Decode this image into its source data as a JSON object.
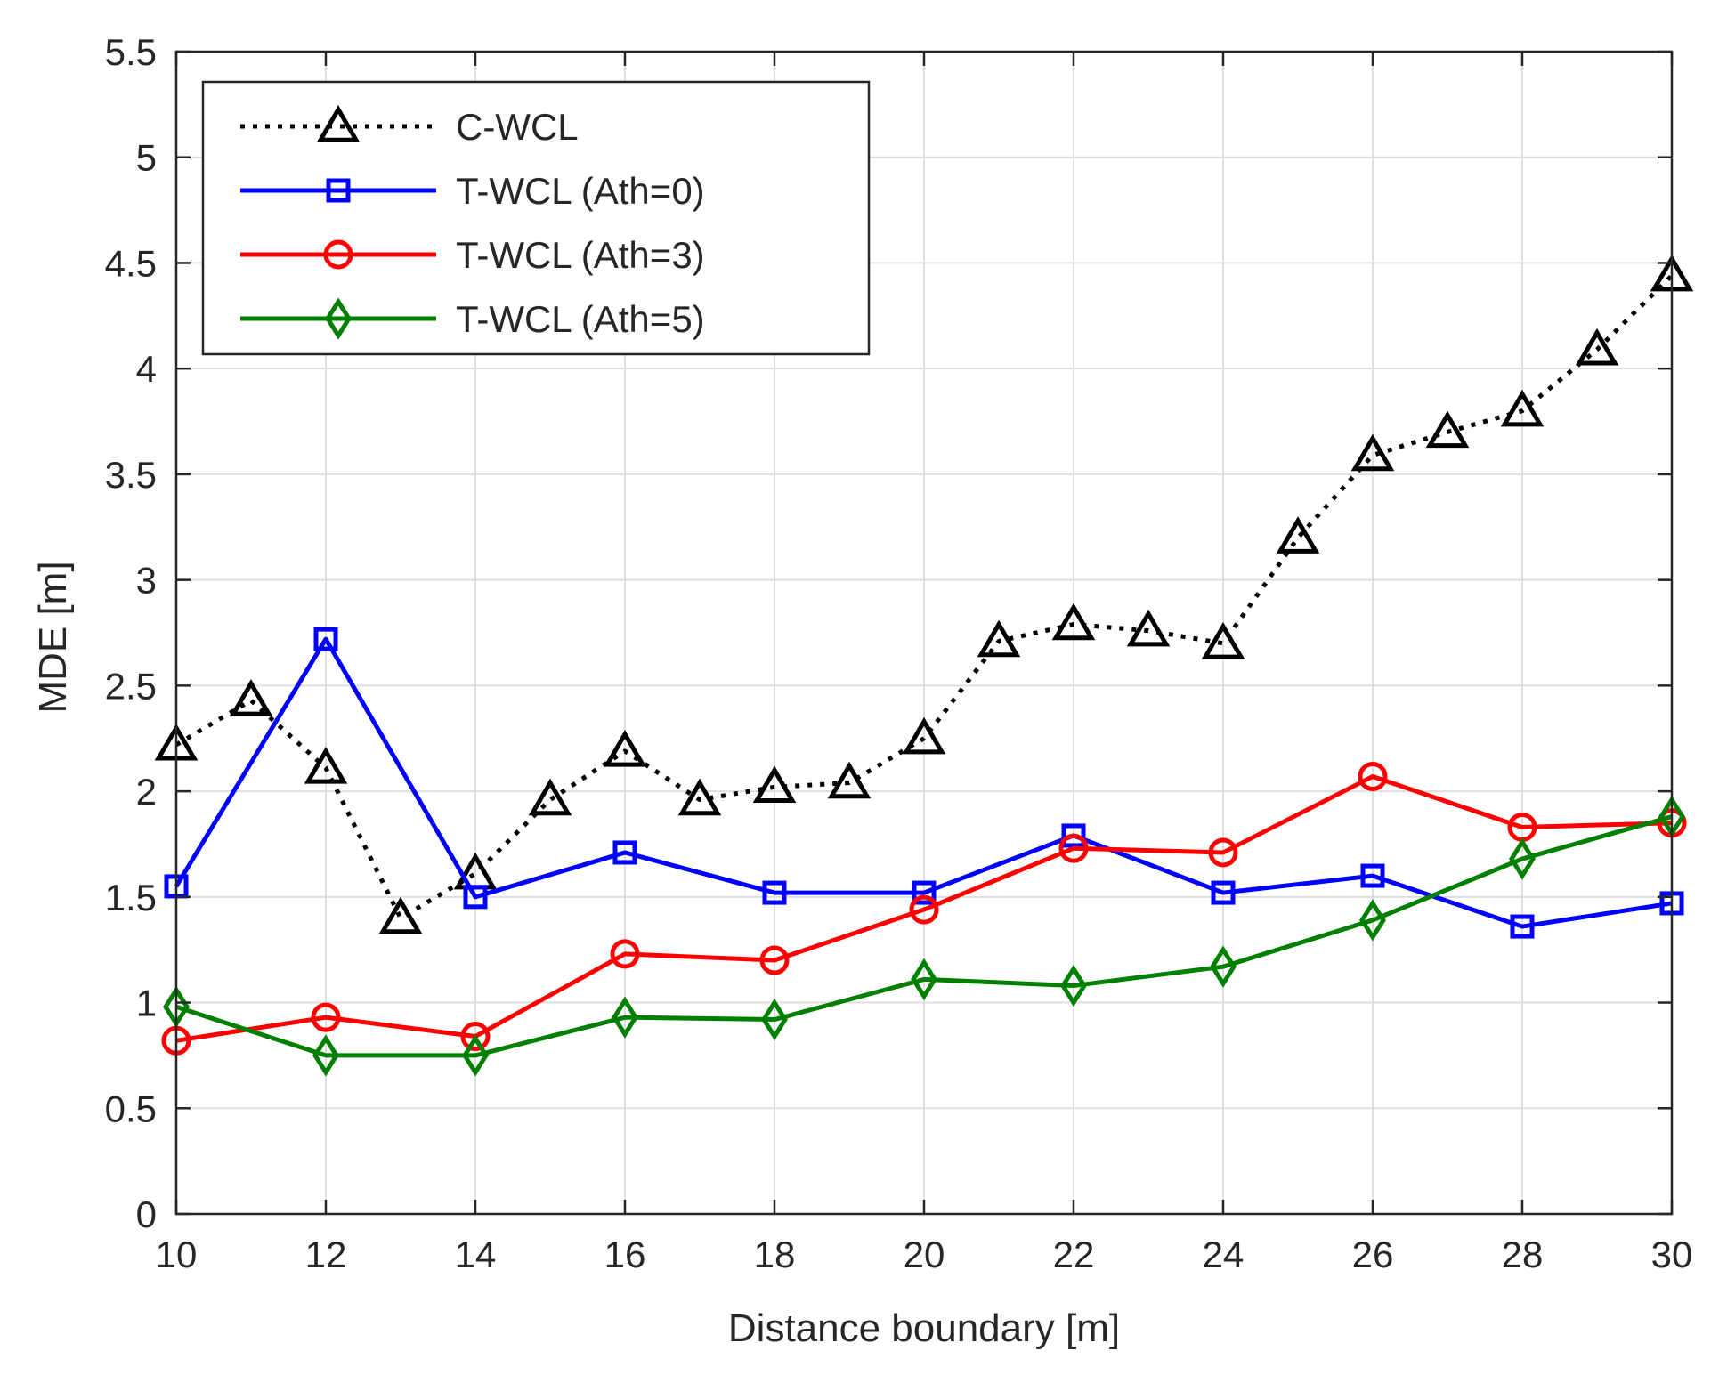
{
  "chart_data": {
    "type": "line",
    "title": "",
    "xlabel": "Distance boundary [m]",
    "ylabel": "MDE [m]",
    "xlim": [
      10,
      30
    ],
    "ylim": [
      0,
      5.5
    ],
    "grid": true,
    "legend_position": "top-left",
    "x_ticks": [
      "10",
      "12",
      "14",
      "16",
      "18",
      "20",
      "22",
      "24",
      "26",
      "28",
      "30"
    ],
    "y_ticks": [
      "0",
      "0.5",
      "1",
      "1.5",
      "2",
      "2.5",
      "3",
      "3.5",
      "4",
      "4.5",
      "5",
      "5.5"
    ],
    "series": [
      {
        "name": "C-WCL",
        "color": "#000000",
        "line_style": "dotted",
        "marker": "triangle",
        "x": [
          10,
          11,
          12,
          13,
          14,
          15,
          16,
          17,
          18,
          19,
          20,
          21,
          22,
          23,
          24,
          25,
          26,
          27,
          28,
          29,
          30
        ],
        "values": [
          2.22,
          2.43,
          2.11,
          1.4,
          1.61,
          1.96,
          2.19,
          1.96,
          2.02,
          2.04,
          2.25,
          2.71,
          2.79,
          2.76,
          2.7,
          3.2,
          3.59,
          3.7,
          3.8,
          4.09,
          4.44
        ]
      },
      {
        "name": "T-WCL (Ath=0)",
        "color": "#0000ff",
        "line_style": "solid",
        "marker": "square",
        "x": [
          10,
          12,
          14,
          16,
          18,
          20,
          22,
          24,
          26,
          28,
          30
        ],
        "values": [
          1.55,
          2.72,
          1.5,
          1.71,
          1.52,
          1.52,
          1.79,
          1.52,
          1.6,
          1.36,
          1.47
        ]
      },
      {
        "name": "T-WCL (Ath=3)",
        "color": "#ff0000",
        "line_style": "solid",
        "marker": "circle",
        "x": [
          10,
          12,
          14,
          16,
          18,
          20,
          22,
          24,
          26,
          28,
          30
        ],
        "values": [
          0.82,
          0.93,
          0.84,
          1.23,
          1.2,
          1.44,
          1.73,
          1.71,
          2.07,
          1.83,
          1.85
        ]
      },
      {
        "name": "T-WCL (Ath=5)",
        "color": "#008000",
        "line_style": "solid",
        "marker": "diamond",
        "x": [
          10,
          12,
          14,
          16,
          18,
          20,
          22,
          24,
          26,
          28,
          30
        ],
        "values": [
          0.98,
          0.75,
          0.75,
          0.93,
          0.92,
          1.11,
          1.08,
          1.17,
          1.39,
          1.68,
          1.88
        ]
      }
    ]
  }
}
